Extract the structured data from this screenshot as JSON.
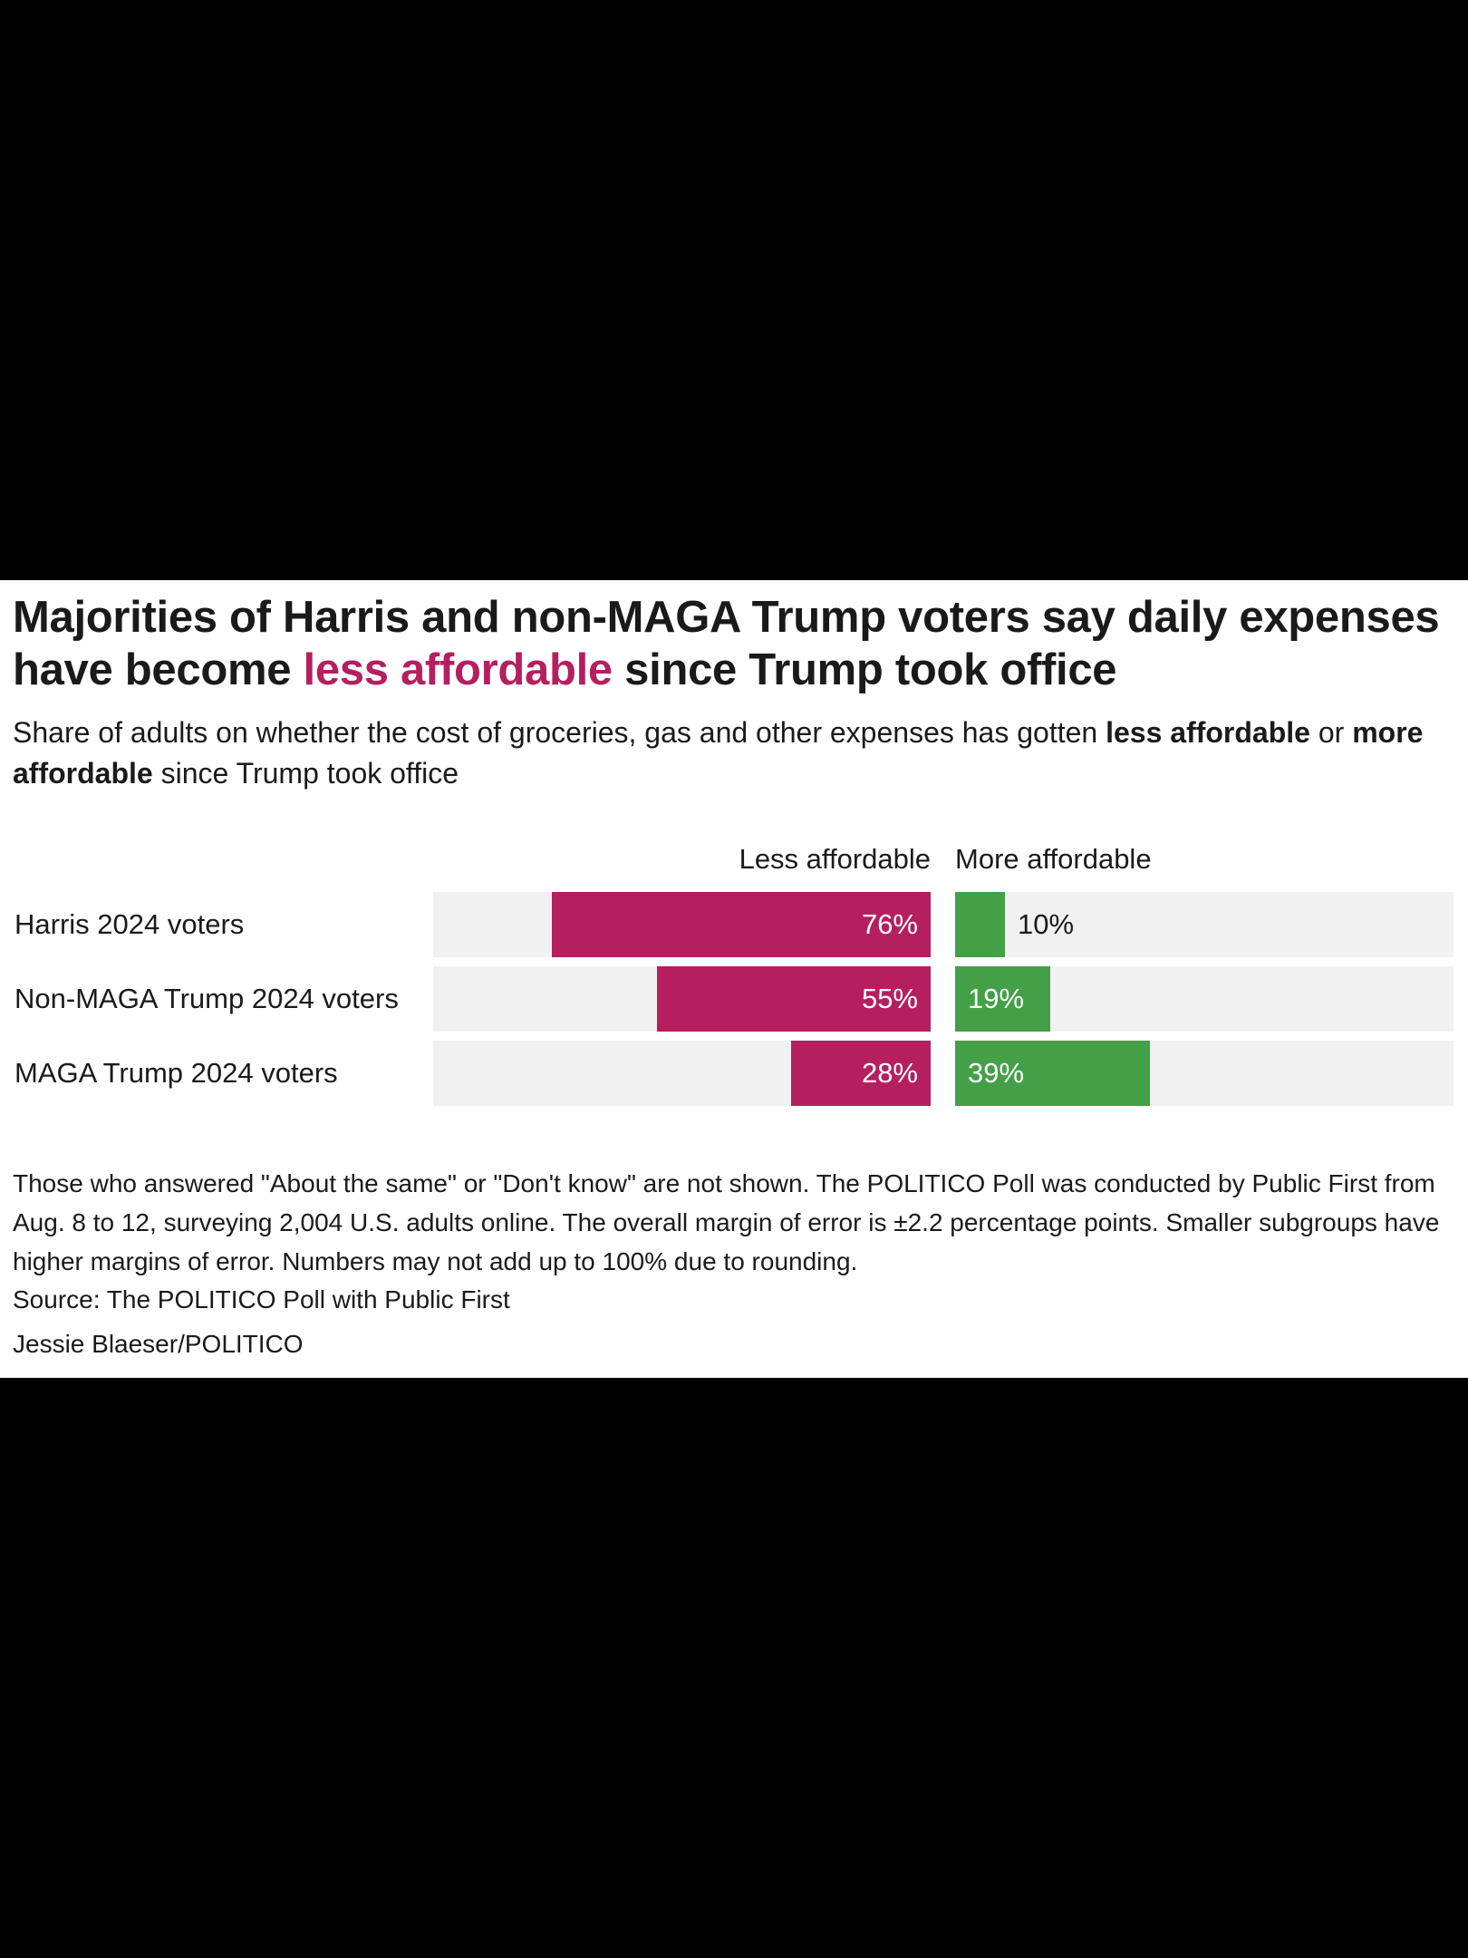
{
  "header": {
    "title_part1": "Majorities of Harris and non-MAGA Trump voters say daily expenses have become ",
    "title_accent": "less affordable",
    "title_part2": " since Trump took office",
    "subtitle_part1": "Share of adults on whether the cost of groceries, gas and other expenses has gotten ",
    "subtitle_bold1": "less affordable",
    "subtitle_part2": " or ",
    "subtitle_bold2": "more affordable",
    "subtitle_part3": " since Trump took office"
  },
  "colors": {
    "less_affordable": "#b51f60",
    "more_affordable": "#43a047",
    "track": "#f1f1f1",
    "accent_text": "#b51f60"
  },
  "chart_data": {
    "type": "bar",
    "orientation": "horizontal-diverging",
    "categories": [
      "Harris 2024 voters",
      "Non-MAGA Trump 2024 voters",
      "MAGA Trump 2024 voters"
    ],
    "series": [
      {
        "name": "Less affordable",
        "values": [
          76,
          55,
          28
        ],
        "labels": [
          "76%",
          "55%",
          "28%"
        ]
      },
      {
        "name": "More affordable",
        "values": [
          10,
          19,
          39
        ],
        "labels": [
          "10%",
          "19%",
          "39%"
        ]
      }
    ],
    "unit": "%",
    "xlim": [
      0,
      100
    ]
  },
  "footer": {
    "notes": "Those who answered \"About the same\" or \"Don't know\" are not shown. The POLITICO Poll was conducted by Public First from Aug. 8 to 12, surveying 2,004 U.S. adults online. The overall margin of error is ±2.2 percentage points. Smaller subgroups have higher margins of error. Numbers may not add up to 100% due to rounding.",
    "source": "Source: The POLITICO Poll with Public First",
    "credit": "Jessie Blaeser/POLITICO"
  }
}
